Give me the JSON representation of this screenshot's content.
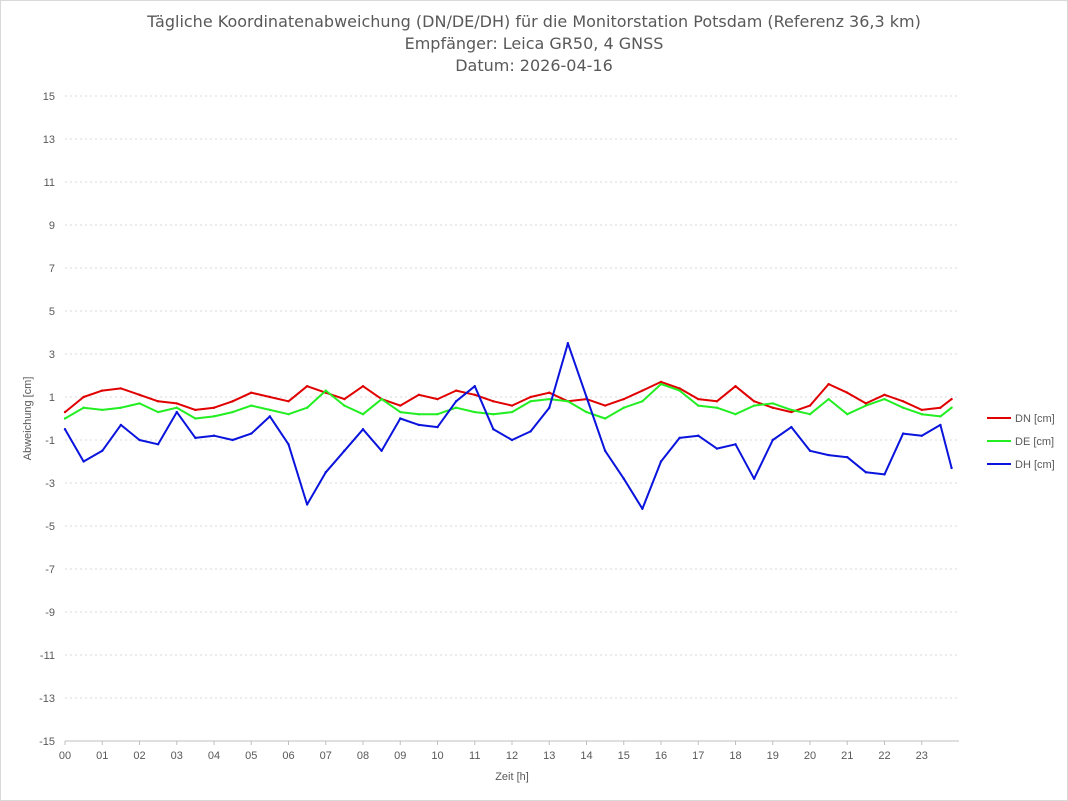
{
  "chart_data": {
    "type": "line",
    "title": "Tägliche Koordinatenabweichung (DN/DE/DH) für die Monitorstation Potsdam (Referenz 36,3 km)",
    "subtitle": "Empfänger: Leica GR50, 4 GNSS",
    "date_line": "Datum: 2026-04-16",
    "xlabel": "Zeit [h]",
    "ylabel": "Abweichung [cm]",
    "xlim": [
      0,
      24
    ],
    "ylim": [
      -15,
      15
    ],
    "x_ticks": [
      "00",
      "01",
      "02",
      "03",
      "04",
      "05",
      "06",
      "07",
      "08",
      "09",
      "10",
      "11",
      "12",
      "13",
      "14",
      "15",
      "16",
      "17",
      "18",
      "19",
      "20",
      "21",
      "22",
      "23"
    ],
    "y_ticks": [
      15,
      13,
      11,
      9,
      7,
      5,
      3,
      1,
      -1,
      -3,
      -5,
      -7,
      -9,
      -11,
      -13,
      -15
    ],
    "grid": true,
    "legend_position": "right",
    "x": [
      0,
      0.5,
      1,
      1.5,
      2,
      2.5,
      3,
      3.5,
      4,
      4.5,
      5,
      5.5,
      6,
      6.5,
      7,
      7.5,
      8,
      8.5,
      9,
      9.5,
      10,
      10.5,
      11,
      11.5,
      12,
      12.5,
      13,
      13.5,
      14,
      14.5,
      15,
      15.5,
      16,
      16.5,
      17,
      17.5,
      18,
      18.5,
      19,
      19.5,
      20,
      20.5,
      21,
      21.5,
      22,
      22.5,
      23,
      23.5,
      23.8
    ],
    "series": [
      {
        "name": "DN [cm]",
        "color": "#e00000",
        "values": [
          0.3,
          1.0,
          1.3,
          1.4,
          1.1,
          0.8,
          0.7,
          0.4,
          0.5,
          0.8,
          1.2,
          1.0,
          0.8,
          1.5,
          1.2,
          0.9,
          1.5,
          0.9,
          0.6,
          1.1,
          0.9,
          1.3,
          1.1,
          0.8,
          0.6,
          1.0,
          1.2,
          0.8,
          0.9,
          0.6,
          0.9,
          1.3,
          1.7,
          1.4,
          0.9,
          0.8,
          1.5,
          0.8,
          0.5,
          0.3,
          0.6,
          1.6,
          1.2,
          0.7,
          1.1,
          0.8,
          0.4,
          0.5,
          0.9
        ]
      },
      {
        "name": "DE [cm]",
        "color": "#22ee22",
        "values": [
          0.0,
          0.5,
          0.4,
          0.5,
          0.7,
          0.3,
          0.5,
          0.0,
          0.1,
          0.3,
          0.6,
          0.4,
          0.2,
          0.5,
          1.3,
          0.6,
          0.2,
          0.9,
          0.3,
          0.2,
          0.2,
          0.5,
          0.3,
          0.2,
          0.3,
          0.8,
          0.9,
          0.8,
          0.3,
          0.0,
          0.5,
          0.8,
          1.6,
          1.3,
          0.6,
          0.5,
          0.2,
          0.6,
          0.7,
          0.4,
          0.2,
          0.9,
          0.2,
          0.6,
          0.9,
          0.5,
          0.2,
          0.1,
          0.5
        ]
      },
      {
        "name": "DH [cm]",
        "color": "#0a14dc",
        "values": [
          -0.5,
          -2.0,
          -1.5,
          -0.3,
          -1.0,
          -1.2,
          0.3,
          -0.9,
          -0.8,
          -1.0,
          -0.7,
          0.1,
          -1.2,
          -4.0,
          -2.5,
          -1.5,
          -0.5,
          -1.5,
          0.0,
          -0.3,
          -0.4,
          0.8,
          1.5,
          -0.5,
          -1.0,
          -0.6,
          0.5,
          3.5,
          1.0,
          -1.5,
          -2.8,
          -4.2,
          -2.0,
          -0.9,
          -0.8,
          -1.4,
          -1.2,
          -2.8,
          -1.0,
          -0.4,
          -1.5,
          -1.7,
          -1.8,
          -2.5,
          -2.6,
          -0.7,
          -0.8,
          -0.3,
          -2.3
        ]
      }
    ]
  }
}
